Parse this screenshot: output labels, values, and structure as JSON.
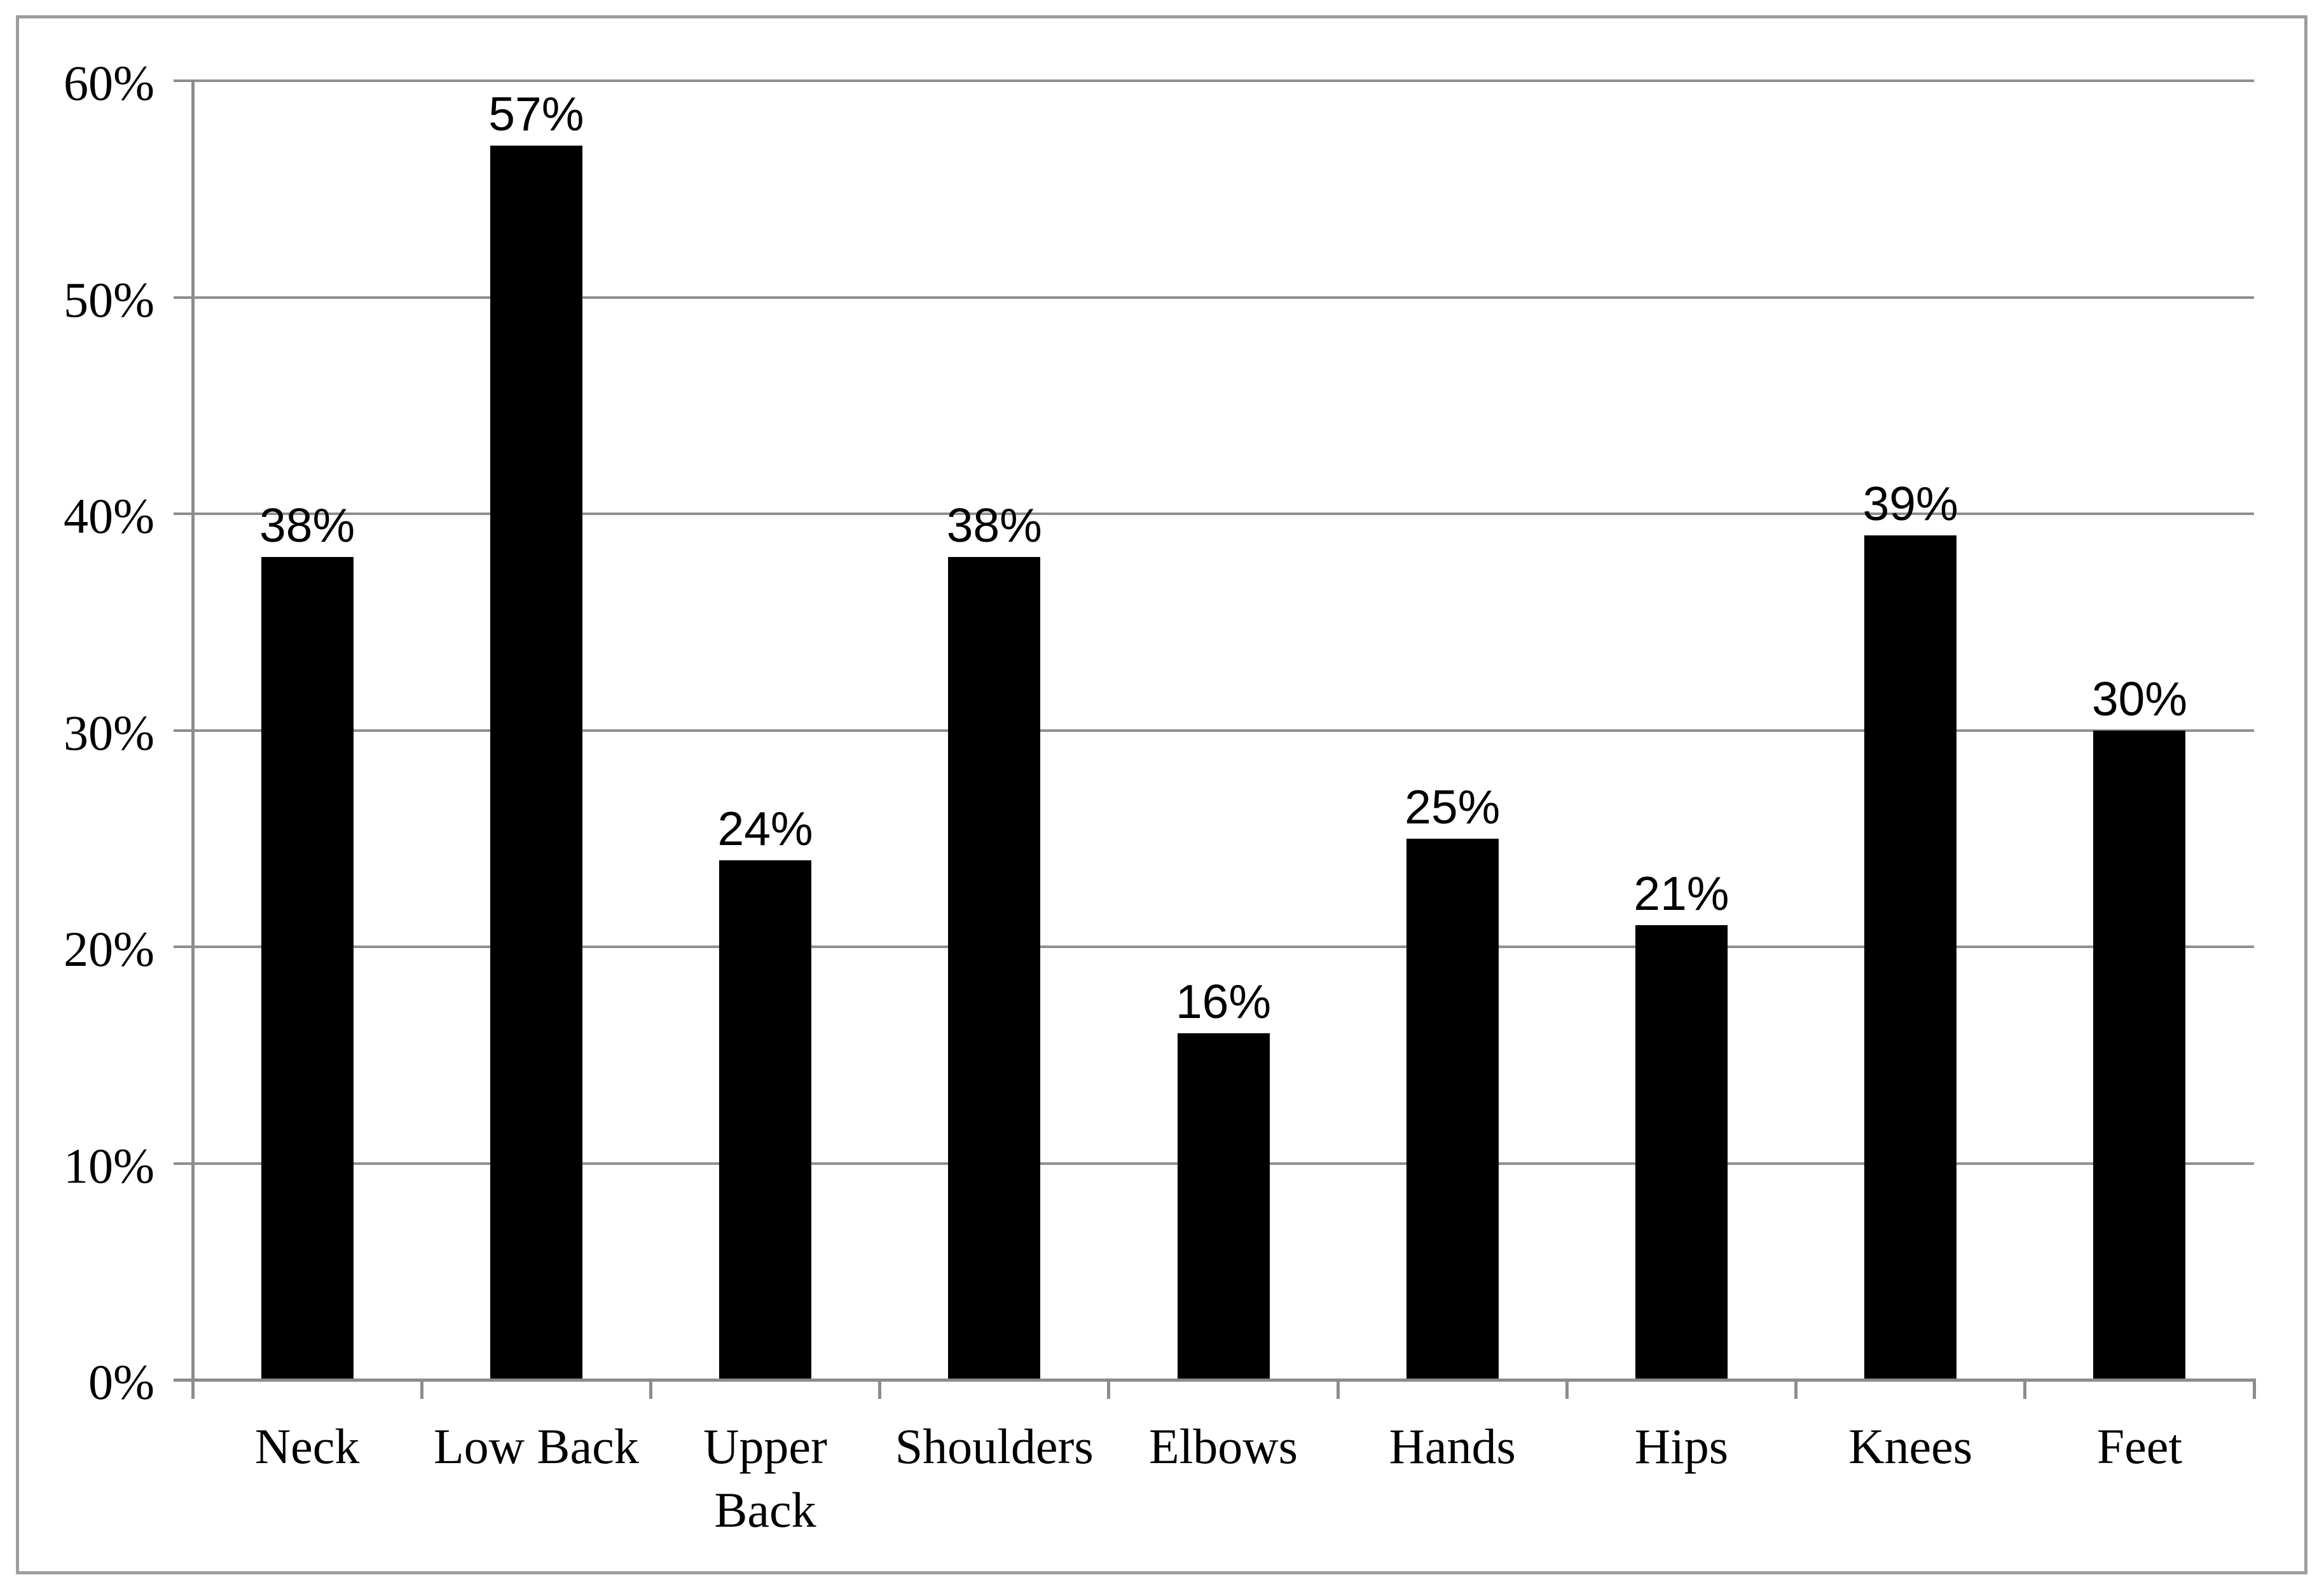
{
  "chart_data": {
    "type": "bar",
    "title": "",
    "categories": [
      "Neck",
      "Low Back",
      "Upper Back",
      "Shoulders",
      "Elbows",
      "Hands",
      "Hips",
      "Knees",
      "Feet"
    ],
    "values": [
      38,
      57,
      24,
      38,
      16,
      25,
      21,
      39,
      30
    ],
    "value_labels": [
      "38%",
      "57%",
      "24%",
      "38%",
      "16%",
      "25%",
      "21%",
      "39%",
      "30%"
    ],
    "y_tick_labels": [
      "0%",
      "10%",
      "20%",
      "30%",
      "40%",
      "50%",
      "60%"
    ],
    "y_tick_values": [
      0,
      10,
      20,
      30,
      40,
      50,
      60
    ],
    "xlabel": "",
    "ylabel": "",
    "ylim": [
      0,
      60
    ],
    "grid": true,
    "legend": false,
    "colors": {
      "bar": "#000000",
      "gridline": "#8f8f8f",
      "axis": "#8c8c8c",
      "frame_border": "#9e9e9e",
      "text": "#000000",
      "background": "#ffffff"
    }
  }
}
